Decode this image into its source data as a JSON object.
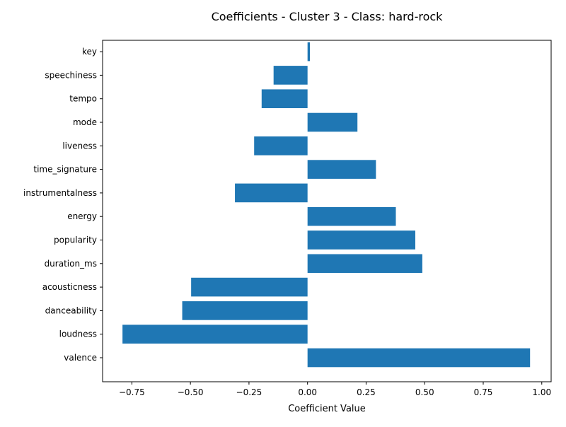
{
  "chart_data": {
    "type": "bar",
    "orientation": "horizontal",
    "title": "Coefficients - Cluster 3 - Class: hard-rock",
    "xlabel": "Coefficient Value",
    "ylabel": "",
    "categories": [
      "valence",
      "loudness",
      "danceability",
      "acousticness",
      "duration_ms",
      "popularity",
      "energy",
      "instrumentalness",
      "time_signature",
      "liveness",
      "mode",
      "tempo",
      "speechiness",
      "key"
    ],
    "values": [
      0.95,
      -0.79,
      -0.535,
      -0.497,
      0.49,
      0.46,
      0.377,
      -0.31,
      0.292,
      -0.228,
      0.213,
      -0.196,
      -0.145,
      0.01
    ],
    "xlim": [
      -0.875,
      1.04
    ],
    "xticks": [
      -0.75,
      -0.5,
      -0.25,
      0.0,
      0.25,
      0.5,
      0.75,
      1.0
    ],
    "xtick_labels": [
      "−0.75",
      "−0.50",
      "−0.25",
      "0.00",
      "0.25",
      "0.50",
      "0.75",
      "1.00"
    ],
    "bar_color": "#1f77b4",
    "grid": false,
    "legend": "none"
  }
}
